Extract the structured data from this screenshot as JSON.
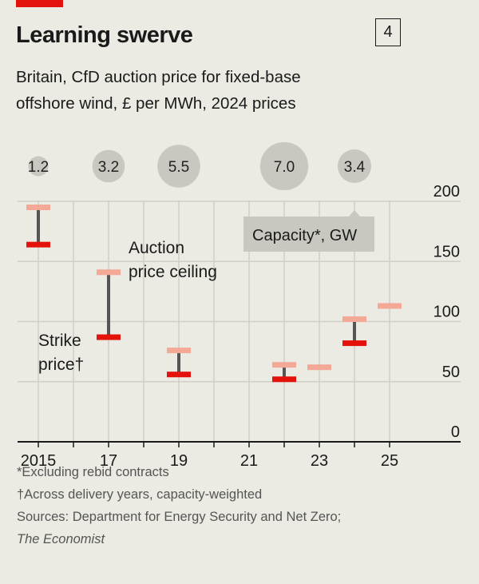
{
  "header": {
    "title": "Learning swerve",
    "chart_number": "4",
    "subtitle_line1": "Britain, CfD auction price for fixed-base",
    "subtitle_line2": "offshore wind, £ per MWh, 2024 prices"
  },
  "colors": {
    "ceiling": "#f4a896",
    "strike": "#e3120b",
    "connector": "#555555",
    "bubble": "#c8c7c0",
    "accent": "#e3120b"
  },
  "chart_data": {
    "type": "range",
    "title": "Learning swerve",
    "ylabel": "£ per MWh, 2024 prices",
    "ylim": [
      0,
      200
    ],
    "yticks": [
      0,
      50,
      100,
      150,
      200
    ],
    "xlim": [
      2015,
      2025
    ],
    "xtick_labels": [
      {
        "x": 2015,
        "label": "2015"
      },
      {
        "x": 2017,
        "label": "17"
      },
      {
        "x": 2019,
        "label": "19"
      },
      {
        "x": 2021,
        "label": "21"
      },
      {
        "x": 2023,
        "label": "23"
      },
      {
        "x": 2025,
        "label": "25"
      }
    ],
    "grid": true,
    "series": [
      {
        "name": "Auction price ceiling",
        "points": [
          {
            "x": 2015,
            "y": 195
          },
          {
            "x": 2017,
            "y": 141
          },
          {
            "x": 2019,
            "y": 76
          },
          {
            "x": 2022,
            "y": 64
          },
          {
            "x": 2023,
            "y": 62
          },
          {
            "x": 2024,
            "y": 102
          },
          {
            "x": 2025,
            "y": 113
          }
        ]
      },
      {
        "name": "Strike price",
        "points": [
          {
            "x": 2015,
            "y": 164
          },
          {
            "x": 2017,
            "y": 87
          },
          {
            "x": 2019,
            "y": 56
          },
          {
            "x": 2022,
            "y": 52
          },
          {
            "x": 2024,
            "y": 82
          }
        ]
      }
    ],
    "capacity": {
      "label": "Capacity*, GW",
      "points": [
        {
          "x": 2015,
          "value": 1.2,
          "label": "1.2"
        },
        {
          "x": 2017,
          "value": 3.2,
          "label": "3.2"
        },
        {
          "x": 2019,
          "value": 5.5,
          "label": "5.5"
        },
        {
          "x": 2022,
          "value": 7.0,
          "label": "7.0"
        },
        {
          "x": 2024,
          "value": 3.4,
          "label": "3.4"
        }
      ]
    },
    "annotations": {
      "ceiling": [
        "Auction",
        "price ceiling"
      ],
      "strike": [
        "Strike",
        "price†"
      ]
    }
  },
  "footnotes": {
    "note1": "*Excluding rebid contracts",
    "note2": "†Across delivery years, capacity-weighted",
    "sources": "Sources: Department for Energy Security and Net Zero;",
    "sources2": "The Economist"
  }
}
